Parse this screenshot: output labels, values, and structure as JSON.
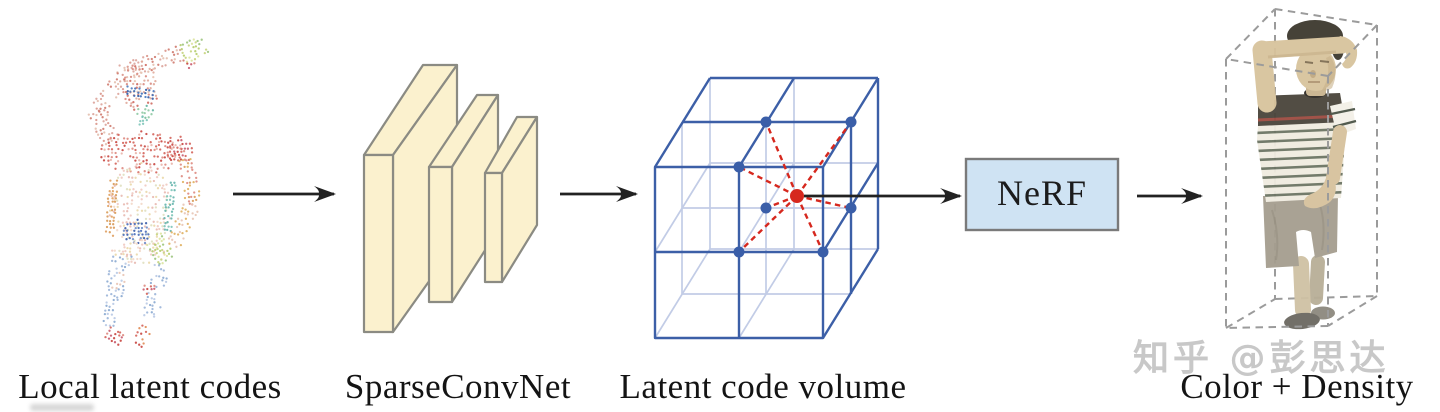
{
  "figure": {
    "stages": [
      {
        "name": "local-latent-codes",
        "label": "Local latent codes"
      },
      {
        "name": "sparseconvnet",
        "label": "SparseConvNet"
      },
      {
        "name": "latent-code-volume",
        "label": "Latent code volume"
      },
      {
        "name": "color-density",
        "label": "Color + Density"
      }
    ],
    "nerf_box": {
      "label": "NeRF",
      "fill": "#cfe3f3",
      "border": "#7a7a7a"
    },
    "watermark": {
      "text": "知乎 @彭思达",
      "color": "#c8c8c8"
    },
    "colors": {
      "cube_edge": "#3c5fa7",
      "cube_inner_light": "#c2cce6",
      "latent_code_dot": "#3a5ea8",
      "query_point": "#d6281e",
      "interpolation_line": "#d6281e",
      "slab_fill": "#fbf1ce",
      "slab_stroke": "#8b8b83",
      "arrow": "#222222",
      "bounding_box_dash": "#9b9b9b"
    }
  }
}
